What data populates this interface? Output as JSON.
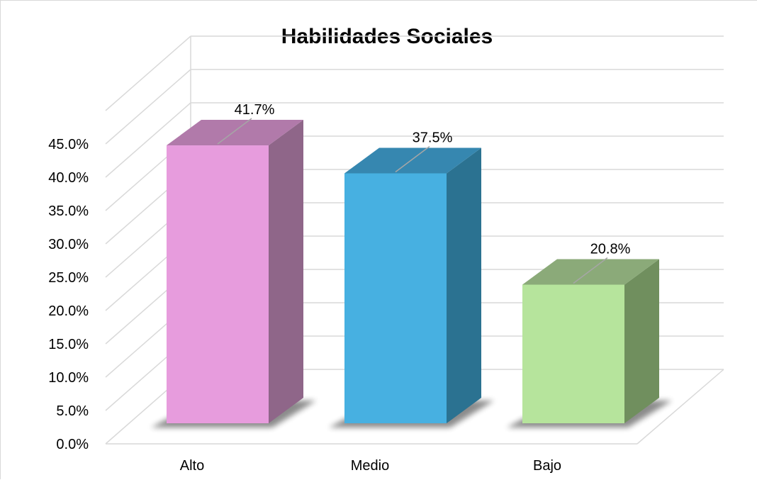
{
  "chart_data": {
    "type": "bar",
    "title": "Habilidades Sociales",
    "xlabel": "",
    "ylabel": "",
    "categories": [
      "Alto",
      "Medio",
      "Bajo"
    ],
    "values": [
      41.7,
      37.5,
      20.8
    ],
    "data_labels": [
      "41.7%",
      "37.5%",
      "20.8%"
    ],
    "ylim": [
      0,
      45
    ],
    "y_ticks": [
      "0.0%",
      "5.0%",
      "10.0%",
      "15.0%",
      "20.0%",
      "25.0%",
      "30.0%",
      "35.0%",
      "40.0%",
      "45.0%"
    ],
    "grid": true,
    "legend": "none",
    "three_d": true,
    "colors": {
      "front": [
        "#E79CDD",
        "#47B0E1",
        "#B6E49C"
      ],
      "side": [
        "#8F6689",
        "#2B7291",
        "#708F5E"
      ],
      "top": [
        "#B17AAA",
        "#3687B0",
        "#8BAA79"
      ],
      "gridline": "#d9d9d9",
      "leader": "#a6a6a6"
    }
  }
}
